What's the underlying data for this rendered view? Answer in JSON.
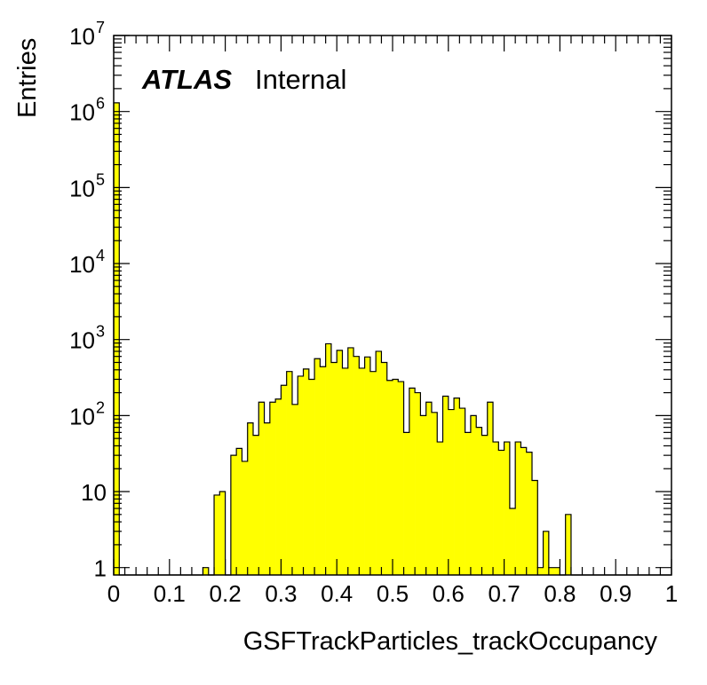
{
  "chart_data": {
    "type": "bar",
    "histogram": true,
    "title": "",
    "xlabel": "GSFTrackParticles_trackOccupancy",
    "ylabel": "Entries",
    "xlim": [
      0,
      1
    ],
    "ylim": [
      0.8,
      10000000
    ],
    "ylog": true,
    "grid": false,
    "bin_width": 0.01,
    "fill_color": "#ffff00",
    "line_color": "#000000",
    "x_ticks": [
      "0",
      "0.1",
      "0.2",
      "0.3",
      "0.4",
      "0.5",
      "0.6",
      "0.7",
      "0.8",
      "0.9",
      "1"
    ],
    "y_ticks": [
      {
        "value": 1,
        "label": "1",
        "sup": ""
      },
      {
        "value": 10,
        "label": "10",
        "sup": ""
      },
      {
        "value": 100,
        "label": "10",
        "sup": "2"
      },
      {
        "value": 1000,
        "label": "10",
        "sup": "3"
      },
      {
        "value": 10000,
        "label": "10",
        "sup": "4"
      },
      {
        "value": 100000,
        "label": "10",
        "sup": "5"
      },
      {
        "value": 1000000,
        "label": "10",
        "sup": "6"
      },
      {
        "value": 10000000,
        "label": "10",
        "sup": "7"
      }
    ],
    "values": [
      1300000,
      0,
      0,
      0,
      0,
      0,
      0,
      0,
      0,
      0,
      0,
      0,
      0,
      0,
      0,
      0,
      1,
      0,
      9,
      10,
      0,
      30,
      37,
      25,
      80,
      55,
      150,
      80,
      150,
      165,
      250,
      380,
      140,
      330,
      410,
      300,
      560,
      440,
      880,
      500,
      720,
      420,
      780,
      600,
      420,
      590,
      380,
      700,
      500,
      290,
      300,
      280,
      60,
      230,
      200,
      100,
      150,
      110,
      45,
      180,
      120,
      170,
      125,
      60,
      100,
      70,
      55,
      150,
      45,
      35,
      45,
      6,
      45,
      38,
      33,
      14,
      1,
      3,
      1,
      1,
      0,
      5,
      0,
      0,
      0,
      0,
      0,
      0,
      0,
      0,
      0,
      0,
      0,
      0,
      0,
      0,
      0,
      0,
      0,
      0
    ]
  },
  "label": {
    "atlas": "ATLAS",
    "status": "Internal"
  }
}
